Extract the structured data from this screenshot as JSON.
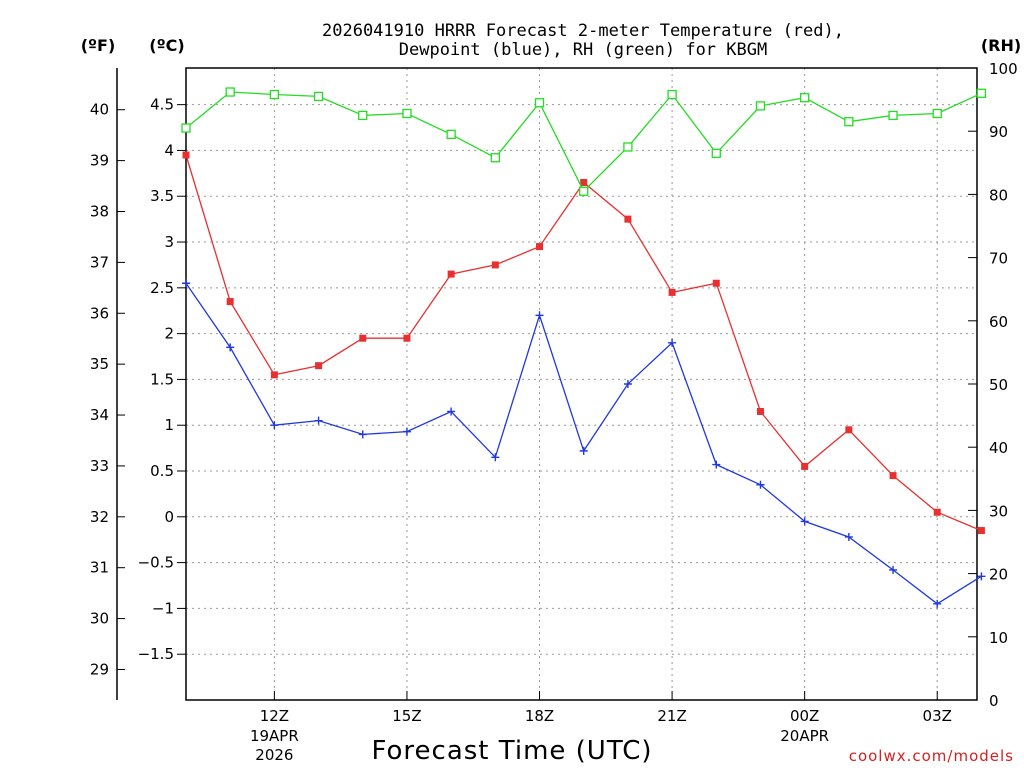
{
  "chart_data": {
    "type": "line",
    "title_line1": "2026041910 HRRR Forecast 2-meter Temperature (red),",
    "title_line2": "Dewpoint (blue), RH (green) for KBGM",
    "xlabel": "Forecast Time (UTC)",
    "units": {
      "fahrenheit": "(ºF)",
      "celsius": "(ºC)",
      "rh": "(RH)"
    },
    "credit": "coolwx.com/models",
    "x_hours_from_10z": [
      0,
      1,
      2,
      3,
      4,
      5,
      6,
      7,
      8,
      9,
      10,
      11,
      12,
      13,
      14,
      15,
      16,
      17,
      18
    ],
    "x_ticks": [
      {
        "hour": 2,
        "label": "12Z",
        "sub1": "19APR",
        "sub2": "2026"
      },
      {
        "hour": 5,
        "label": "15Z",
        "sub1": "",
        "sub2": ""
      },
      {
        "hour": 8,
        "label": "18Z",
        "sub1": "",
        "sub2": ""
      },
      {
        "hour": 11,
        "label": "21Z",
        "sub1": "",
        "sub2": ""
      },
      {
        "hour": 14,
        "label": "00Z",
        "sub1": "20APR",
        "sub2": ""
      },
      {
        "hour": 17,
        "label": "03Z",
        "sub1": "",
        "sub2": ""
      }
    ],
    "celsius_axis": {
      "min": -2.0,
      "max": 4.9,
      "ticks": [
        -1.5,
        -1,
        -0.5,
        0,
        0.5,
        1,
        1.5,
        2,
        2.5,
        3,
        3.5,
        4,
        4.5
      ],
      "tick_labels": [
        "−1.5",
        "−1",
        "−0.5",
        "0",
        "0.5",
        "1",
        "1.5",
        "2",
        "2.5",
        "3",
        "3.5",
        "4",
        "4.5"
      ]
    },
    "fahrenheit_axis": {
      "ticks": [
        29,
        30,
        31,
        32,
        33,
        34,
        35,
        36,
        37,
        38,
        39,
        40
      ],
      "tick_labels": [
        "29",
        "30",
        "31",
        "32",
        "33",
        "34",
        "35",
        "36",
        "37",
        "38",
        "39",
        "40"
      ]
    },
    "rh_axis": {
      "min": 0,
      "max": 100,
      "ticks": [
        0,
        10,
        20,
        30,
        40,
        50,
        60,
        70,
        80,
        90,
        100
      ],
      "tick_labels": [
        "0",
        "10",
        "20",
        "30",
        "40",
        "50",
        "60",
        "70",
        "80",
        "90",
        "100"
      ]
    },
    "series": [
      {
        "name": "Temperature",
        "axis": "celsius",
        "color": "#e83030",
        "marker": "filled-square",
        "values": [
          3.95,
          2.35,
          1.55,
          1.65,
          1.95,
          1.95,
          2.65,
          2.75,
          2.95,
          3.65,
          3.25,
          2.45,
          2.55,
          1.15,
          0.55,
          0.95,
          0.45,
          0.05,
          -0.15
        ]
      },
      {
        "name": "Dewpoint",
        "axis": "celsius",
        "color": "#2038e0",
        "marker": "plus",
        "values": [
          2.55,
          1.85,
          1.0,
          1.05,
          0.9,
          0.93,
          1.15,
          0.65,
          2.2,
          0.72,
          1.45,
          1.9,
          0.57,
          0.35,
          -0.05,
          -0.22,
          -0.58,
          -0.95,
          -0.65
        ]
      },
      {
        "name": "RH",
        "axis": "rh",
        "color": "#22dd22",
        "marker": "open-square",
        "values": [
          90.5,
          96.2,
          95.8,
          95.5,
          92.5,
          92.8,
          89.5,
          85.8,
          94.5,
          80.5,
          87.5,
          95.8,
          86.5,
          94.0,
          95.3,
          91.5,
          92.5,
          92.8,
          96.0
        ]
      }
    ]
  }
}
